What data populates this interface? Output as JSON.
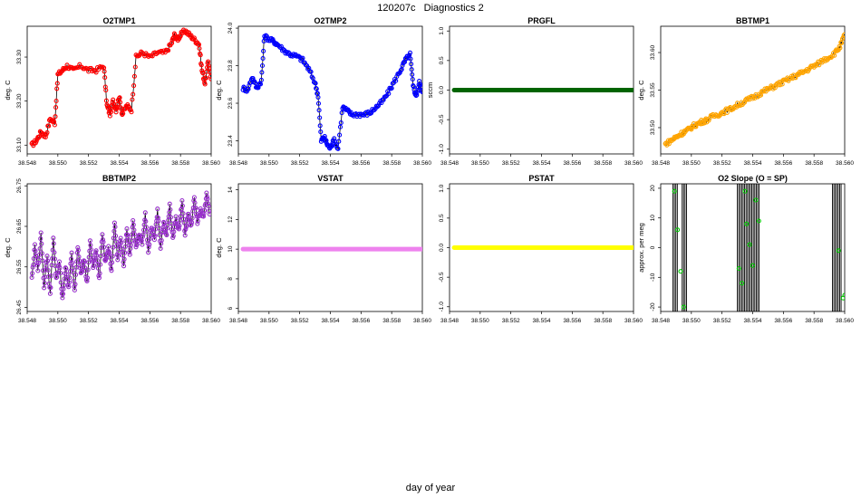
{
  "page": {
    "title": "120207c   Diagnostics 2",
    "xlabel": "day of year"
  },
  "chart_data": [
    {
      "type": "scatter",
      "title": "O2TMP1",
      "ylabel": "deg. C",
      "color": "#ff0000",
      "xlim": [
        38.548,
        38.56
      ],
      "ylim": [
        33.08,
        33.37
      ],
      "xticks": [
        38.548,
        38.55,
        38.552,
        38.554,
        38.556,
        38.558,
        38.56
      ],
      "yticks": [
        33.1,
        33.2,
        33.3
      ],
      "ytick_labels": [
        "33.10",
        "33.20",
        "33.30"
      ],
      "connect": true,
      "x": [
        38.5483,
        38.5486,
        38.5489,
        38.5492,
        38.5495,
        38.5498,
        38.55,
        38.5503,
        38.5506,
        38.551,
        38.5515,
        38.552,
        38.5525,
        38.553,
        38.5532,
        38.5534,
        38.5536,
        38.5538,
        38.554,
        38.5542,
        38.5545,
        38.5548,
        38.5551,
        38.5555,
        38.556,
        38.5565,
        38.557,
        38.5574,
        38.5576,
        38.5578,
        38.558,
        38.5583,
        38.5586,
        38.5589,
        38.5592,
        38.5594,
        38.5596,
        38.5598,
        38.56
      ],
      "y": [
        33.1,
        33.11,
        33.13,
        33.12,
        33.16,
        33.15,
        33.26,
        33.27,
        33.28,
        33.27,
        33.28,
        33.27,
        33.27,
        33.28,
        33.19,
        33.17,
        33.2,
        33.18,
        33.21,
        33.17,
        33.19,
        33.18,
        33.3,
        33.31,
        33.3,
        33.31,
        33.31,
        33.33,
        33.35,
        33.34,
        33.35,
        33.36,
        33.35,
        33.34,
        33.33,
        33.27,
        33.24,
        33.29,
        33.25
      ]
    },
    {
      "type": "scatter",
      "title": "O2TMP2",
      "ylabel": "deg. C",
      "color": "#0000ff",
      "xlim": [
        38.548,
        38.56
      ],
      "ylim": [
        23.33,
        24.01
      ],
      "xticks": [
        38.548,
        38.55,
        38.552,
        38.554,
        38.556,
        38.558,
        38.56
      ],
      "yticks": [
        23.4,
        23.6,
        23.8,
        24.0
      ],
      "ytick_labels": [
        "23.4",
        "23.6",
        "23.8",
        "24.0"
      ],
      "connect": true,
      "x": [
        38.5483,
        38.5486,
        38.5489,
        38.5492,
        38.5495,
        38.5497,
        38.55,
        38.5503,
        38.5506,
        38.551,
        38.5514,
        38.5518,
        38.5522,
        38.5526,
        38.553,
        38.5532,
        38.5534,
        38.5536,
        38.5538,
        38.554,
        38.5542,
        38.5545,
        38.5548,
        38.5551,
        38.5554,
        38.5558,
        38.5562,
        38.5566,
        38.557,
        38.5574,
        38.5578,
        38.5582,
        38.5586,
        38.5589,
        38.5592,
        38.5594,
        38.5596,
        38.5598,
        38.56
      ],
      "y": [
        23.68,
        23.67,
        23.74,
        23.68,
        23.72,
        23.96,
        23.94,
        23.93,
        23.91,
        23.88,
        23.86,
        23.85,
        23.83,
        23.78,
        23.71,
        23.64,
        23.4,
        23.42,
        23.38,
        23.36,
        23.41,
        23.36,
        23.58,
        23.56,
        23.54,
        23.54,
        23.54,
        23.55,
        23.58,
        23.61,
        23.66,
        23.72,
        23.78,
        23.83,
        23.86,
        23.69,
        23.64,
        23.71,
        23.66
      ]
    },
    {
      "type": "scatter",
      "title": "PRGFL",
      "ylabel": "sccm",
      "color": "#006400",
      "xlim": [
        38.548,
        38.56
      ],
      "ylim": [
        -1.08,
        1.08
      ],
      "xticks": [
        38.548,
        38.55,
        38.552,
        38.554,
        38.556,
        38.558,
        38.56
      ],
      "yticks": [
        -1.0,
        -0.5,
        0.0,
        0.5,
        1.0
      ],
      "ytick_labels": [
        "-1.0",
        "-0.5",
        "0.0",
        "0.5",
        "1.0"
      ],
      "connect": false,
      "dense": true,
      "x": [
        38.5483,
        38.56
      ],
      "y": [
        0.0,
        0.0
      ]
    },
    {
      "type": "scatter",
      "title": "BBTMP1",
      "ylabel": "deg. C",
      "color": "#ffa500",
      "xlim": [
        38.548,
        38.56
      ],
      "ylim": [
        33.465,
        33.635
      ],
      "xticks": [
        38.548,
        38.55,
        38.552,
        38.554,
        38.556,
        38.558,
        38.56
      ],
      "yticks": [
        33.5,
        33.55,
        33.6
      ],
      "ytick_labels": [
        "33.50",
        "33.55",
        "33.60"
      ],
      "connect": true,
      "x": [
        38.5483,
        38.5486,
        38.5489,
        38.5492,
        38.5495,
        38.5498,
        38.5501,
        38.5504,
        38.5507,
        38.551,
        38.5514,
        38.5518,
        38.5522,
        38.5526,
        38.553,
        38.5534,
        38.5538,
        38.5542,
        38.5546,
        38.555,
        38.5554,
        38.5558,
        38.5562,
        38.5566,
        38.557,
        38.5574,
        38.5578,
        38.5582,
        38.5586,
        38.559,
        38.5594,
        38.5597,
        38.56
      ],
      "y": [
        33.478,
        33.482,
        33.486,
        33.49,
        33.494,
        33.497,
        33.502,
        33.505,
        33.508,
        33.51,
        33.515,
        33.518,
        33.522,
        33.525,
        33.53,
        33.534,
        33.538,
        33.542,
        33.547,
        33.551,
        33.555,
        33.559,
        33.563,
        33.567,
        33.571,
        33.575,
        33.58,
        33.584,
        33.59,
        33.594,
        33.6,
        33.608,
        33.624
      ]
    },
    {
      "type": "scatter",
      "title": "BBTMP2",
      "ylabel": "deg. C",
      "color": "#9932cc",
      "xlim": [
        38.548,
        38.56
      ],
      "ylim": [
        26.44,
        26.755
      ],
      "xticks": [
        38.548,
        38.55,
        38.552,
        38.554,
        38.556,
        38.558,
        38.56
      ],
      "yticks": [
        26.45,
        26.55,
        26.65,
        26.75
      ],
      "ytick_labels": [
        "26.45",
        "26.55",
        "26.65",
        "26.75"
      ],
      "connect": true,
      "x": [
        38.5483,
        38.5485,
        38.5487,
        38.5489,
        38.5491,
        38.5493,
        38.5495,
        38.5497,
        38.5499,
        38.5501,
        38.5503,
        38.5505,
        38.5507,
        38.5509,
        38.5511,
        38.5513,
        38.5515,
        38.5517,
        38.5519,
        38.5521,
        38.5523,
        38.5525,
        38.5527,
        38.5529,
        38.5531,
        38.5533,
        38.5535,
        38.5537,
        38.5539,
        38.5541,
        38.5543,
        38.5545,
        38.5547,
        38.5549,
        38.5551,
        38.5553,
        38.5555,
        38.5557,
        38.5559,
        38.5561,
        38.5563,
        38.5565,
        38.5567,
        38.5569,
        38.5571,
        38.5573,
        38.5575,
        38.5577,
        38.5579,
        38.5581,
        38.5583,
        38.5585,
        38.5587,
        38.5589,
        38.5591,
        38.5593,
        38.5595,
        38.5597,
        38.5599
      ],
      "y": [
        26.52,
        26.6,
        26.54,
        26.63,
        26.5,
        26.58,
        26.48,
        26.62,
        26.52,
        26.56,
        26.47,
        26.55,
        26.5,
        26.58,
        26.49,
        26.6,
        26.53,
        26.57,
        26.51,
        26.61,
        26.55,
        26.59,
        26.52,
        26.63,
        26.56,
        26.6,
        26.54,
        26.66,
        26.57,
        26.62,
        26.55,
        26.64,
        26.58,
        26.66,
        26.6,
        26.63,
        26.61,
        26.68,
        26.59,
        26.65,
        26.62,
        26.69,
        26.6,
        26.66,
        26.63,
        26.7,
        26.62,
        26.67,
        26.64,
        26.71,
        26.63,
        26.68,
        26.65,
        26.72,
        26.66,
        26.69,
        26.67,
        26.73,
        26.68
      ]
    },
    {
      "type": "scatter",
      "title": "VSTAT",
      "ylabel": "deg. C",
      "color": "#ee82ee",
      "xlim": [
        38.548,
        38.56
      ],
      "ylim": [
        5.8,
        14.4
      ],
      "xticks": [
        38.548,
        38.55,
        38.552,
        38.554,
        38.556,
        38.558,
        38.56
      ],
      "yticks": [
        6,
        8,
        10,
        12,
        14
      ],
      "ytick_labels": [
        "6",
        "8",
        "10",
        "12",
        "14"
      ],
      "connect": false,
      "dense": true,
      "x": [
        38.5483,
        38.56
      ],
      "y": [
        10,
        10
      ]
    },
    {
      "type": "scatter",
      "title": "PSTAT",
      "ylabel": "",
      "color": "#ffff00",
      "xlim": [
        38.548,
        38.56
      ],
      "ylim": [
        -1.08,
        1.08
      ],
      "xticks": [
        38.548,
        38.55,
        38.552,
        38.554,
        38.556,
        38.558,
        38.56
      ],
      "yticks": [
        -1.0,
        -0.5,
        0.0,
        0.5,
        1.0
      ],
      "ytick_labels": [
        "-1.0",
        "-0.5",
        "0.0",
        "0.5",
        "1.0"
      ],
      "connect": false,
      "dense": true,
      "x": [
        38.5483,
        38.56
      ],
      "y": [
        0.0,
        0.0
      ]
    },
    {
      "type": "scatter",
      "title": "O2 Slope (O = SP)",
      "ylabel": "approx. per meg",
      "color": "#00cc00",
      "xlim": [
        38.548,
        38.56
      ],
      "ylim": [
        -21.5,
        21.5
      ],
      "xticks": [
        38.548,
        38.55,
        38.552,
        38.554,
        38.556,
        38.558,
        38.56
      ],
      "yticks": [
        -20,
        -10,
        0,
        10,
        20
      ],
      "ytick_labels": [
        "-20",
        "-10",
        "0",
        "10",
        "20"
      ],
      "connect": false,
      "vbands": [
        [
          38.5488,
          38.5491
        ],
        [
          38.5494,
          38.5497
        ],
        [
          38.553,
          38.5545
        ],
        [
          38.5592,
          38.5598
        ]
      ],
      "x": [
        38.5489,
        38.5491,
        38.5493,
        38.5495,
        38.5531,
        38.5533,
        38.5535,
        38.5536,
        38.5538,
        38.554,
        38.5542,
        38.5544,
        38.5596,
        38.5599,
        38.56
      ],
      "y": [
        19,
        6,
        -8,
        -20,
        -7,
        -12,
        19,
        8,
        1,
        -6,
        16,
        9,
        -1,
        -17,
        -16
      ]
    }
  ]
}
